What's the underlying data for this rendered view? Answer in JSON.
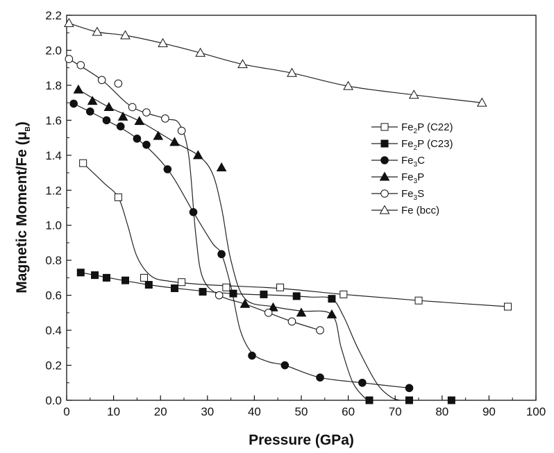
{
  "chart_data": {
    "type": "line",
    "xlabel": "Pressure (GPa)",
    "ylabel": "Magnetic Moment/Fe (μB)",
    "ylabel_main": "Magnetic Moment/Fe (μ",
    "ylabel_sub": "B",
    "ylabel_close": ")",
    "xlim": [
      0,
      100
    ],
    "ylim": [
      0.0,
      2.2
    ],
    "xticks": [
      "0",
      "10",
      "20",
      "30",
      "40",
      "50",
      "60",
      "70",
      "80",
      "90",
      "100"
    ],
    "yticks": [
      "0.0",
      "0.2",
      "0.4",
      "0.6",
      "0.8",
      "1.0",
      "1.2",
      "1.4",
      "1.6",
      "1.8",
      "2.0",
      "2.2"
    ],
    "grid": false,
    "legend_position": "right-middle",
    "series": [
      {
        "name": "Fe2P (C22)",
        "label_parts": [
          "Fe",
          "2",
          "P (C22)"
        ],
        "marker": "square-open",
        "points": [
          [
            3.5,
            1.355
          ],
          [
            11,
            1.16
          ],
          [
            16.5,
            0.7
          ],
          [
            24.5,
            0.675
          ],
          [
            34,
            0.645
          ],
          [
            45.5,
            0.645
          ],
          [
            59,
            0.605
          ],
          [
            75,
            0.57
          ],
          [
            94,
            0.535
          ]
        ],
        "curve": [
          [
            3.5,
            1.355
          ],
          [
            8,
            1.24
          ],
          [
            11,
            1.16
          ],
          [
            13,
            1.0
          ],
          [
            15,
            0.82
          ],
          [
            18,
            0.71
          ],
          [
            22,
            0.68
          ],
          [
            30,
            0.66
          ],
          [
            45,
            0.64
          ],
          [
            59,
            0.605
          ],
          [
            75,
            0.57
          ],
          [
            94,
            0.535
          ]
        ]
      },
      {
        "name": "Fe2P (C23)",
        "label_parts": [
          "Fe",
          "2",
          "P (C23)"
        ],
        "marker": "square-filled",
        "points": [
          [
            3,
            0.73
          ],
          [
            6,
            0.715
          ],
          [
            8.5,
            0.7
          ],
          [
            12.5,
            0.685
          ],
          [
            17.5,
            0.66
          ],
          [
            23,
            0.64
          ],
          [
            29,
            0.62
          ],
          [
            35.5,
            0.61
          ],
          [
            42,
            0.605
          ],
          [
            49,
            0.595
          ],
          [
            56.5,
            0.58
          ],
          [
            64.5,
            0.0
          ],
          [
            73,
            0.0
          ],
          [
            82,
            0.0
          ]
        ],
        "curve": [
          [
            3,
            0.73
          ],
          [
            10,
            0.695
          ],
          [
            17.5,
            0.66
          ],
          [
            25,
            0.635
          ],
          [
            35,
            0.61
          ],
          [
            45,
            0.6
          ],
          [
            52,
            0.59
          ],
          [
            56.5,
            0.58
          ],
          [
            59,
            0.48
          ],
          [
            62,
            0.3
          ],
          [
            66,
            0.1
          ],
          [
            69,
            0.02
          ],
          [
            71,
            0.0
          ]
        ]
      },
      {
        "name": "Fe3C",
        "label_parts": [
          "Fe",
          "3",
          "C"
        ],
        "marker": "circle-filled",
        "points": [
          [
            1.5,
            1.695
          ],
          [
            5,
            1.65
          ],
          [
            8.5,
            1.6
          ],
          [
            11.5,
            1.565
          ],
          [
            15,
            1.495
          ],
          [
            17,
            1.46
          ],
          [
            21.5,
            1.32
          ],
          [
            27,
            1.075
          ],
          [
            33,
            0.835
          ],
          [
            39.5,
            0.255
          ],
          [
            46.5,
            0.2
          ],
          [
            54,
            0.13
          ],
          [
            63,
            0.1
          ],
          [
            73,
            0.07
          ]
        ],
        "curve": [
          [
            1.5,
            1.695
          ],
          [
            8.5,
            1.6
          ],
          [
            15,
            1.495
          ],
          [
            21.5,
            1.32
          ],
          [
            27,
            1.075
          ],
          [
            31,
            0.9
          ],
          [
            33,
            0.835
          ],
          [
            35,
            0.65
          ],
          [
            37,
            0.4
          ],
          [
            39.5,
            0.27
          ],
          [
            43,
            0.22
          ],
          [
            46.5,
            0.2
          ],
          [
            54,
            0.13
          ],
          [
            63,
            0.1
          ],
          [
            73,
            0.07
          ]
        ]
      },
      {
        "name": "Fe3P",
        "label_parts": [
          "Fe",
          "3",
          "P"
        ],
        "marker": "triangle-filled",
        "points": [
          [
            2.5,
            1.775
          ],
          [
            5.5,
            1.71
          ],
          [
            9,
            1.675
          ],
          [
            12,
            1.62
          ],
          [
            15.5,
            1.595
          ],
          [
            19.5,
            1.51
          ],
          [
            23,
            1.475
          ],
          [
            28,
            1.4
          ],
          [
            33,
            1.33
          ],
          [
            38,
            0.55
          ],
          [
            44,
            0.53
          ],
          [
            50,
            0.5
          ],
          [
            56.5,
            0.49
          ]
        ],
        "curve": [
          [
            2.5,
            1.775
          ],
          [
            9,
            1.675
          ],
          [
            15.5,
            1.595
          ],
          [
            23,
            1.475
          ],
          [
            28,
            1.4
          ],
          [
            31,
            1.3
          ],
          [
            33,
            1.1
          ],
          [
            35,
            0.8
          ],
          [
            38,
            0.58
          ],
          [
            44,
            0.535
          ],
          [
            50,
            0.51
          ],
          [
            56.5,
            0.49
          ],
          [
            58.5,
            0.3
          ],
          [
            61,
            0.1
          ],
          [
            64,
            0.0
          ]
        ]
      },
      {
        "name": "Fe3S",
        "label_parts": [
          "Fe",
          "3",
          "S"
        ],
        "marker": "circle-open",
        "points": [
          [
            0.5,
            1.95
          ],
          [
            3,
            1.915
          ],
          [
            7.5,
            1.83
          ],
          [
            11,
            1.81
          ],
          [
            14,
            1.675
          ],
          [
            17,
            1.645
          ],
          [
            21,
            1.61
          ],
          [
            24.5,
            1.54
          ],
          [
            32.5,
            0.6
          ],
          [
            43,
            0.5
          ],
          [
            48,
            0.45
          ],
          [
            54,
            0.4
          ]
        ],
        "curve": [
          [
            0.5,
            1.95
          ],
          [
            7.5,
            1.83
          ],
          [
            14,
            1.675
          ],
          [
            21,
            1.61
          ],
          [
            24,
            1.58
          ],
          [
            26,
            1.4
          ],
          [
            27.5,
            0.95
          ],
          [
            29,
            0.7
          ],
          [
            32.5,
            0.6
          ],
          [
            38,
            0.55
          ],
          [
            43,
            0.5
          ],
          [
            48,
            0.45
          ],
          [
            54,
            0.4
          ]
        ]
      },
      {
        "name": "Fe (bcc)",
        "label_parts": [
          "Fe (bcc)"
        ],
        "marker": "triangle-open",
        "points": [
          [
            0.5,
            2.155
          ],
          [
            6.5,
            2.105
          ],
          [
            12.5,
            2.085
          ],
          [
            20.5,
            2.04
          ],
          [
            28.5,
            1.985
          ],
          [
            37.5,
            1.92
          ],
          [
            48,
            1.87
          ],
          [
            60,
            1.795
          ],
          [
            74,
            1.745
          ],
          [
            88.5,
            1.7
          ]
        ],
        "curve": [
          [
            0.5,
            2.155
          ],
          [
            6.5,
            2.105
          ],
          [
            12.5,
            2.085
          ],
          [
            20.5,
            2.04
          ],
          [
            28.5,
            1.985
          ],
          [
            37.5,
            1.92
          ],
          [
            48,
            1.87
          ],
          [
            60,
            1.795
          ],
          [
            74,
            1.745
          ],
          [
            88.5,
            1.7
          ]
        ]
      }
    ]
  }
}
